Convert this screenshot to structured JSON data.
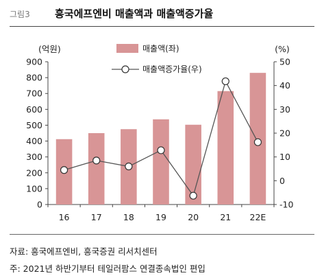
{
  "figure": {
    "label": "그림3",
    "title": "흥국에프엔비 매출액과 매출액증가율",
    "source": "자료: 흥국에프엔비, 흥국증권 리서치센터",
    "footnote": "주: 2021년 하반기부터 테일러팜스 연결종속법인 편입"
  },
  "chart_data": {
    "type": "bar",
    "categories": [
      "16",
      "17",
      "18",
      "19",
      "20",
      "21",
      "22E"
    ],
    "series": [
      {
        "name": "매출액(좌)",
        "type": "bar",
        "axis": "left",
        "color": "#d89596",
        "values": [
          412,
          450,
          475,
          537,
          503,
          715,
          830
        ]
      },
      {
        "name": "매출액증가율(우)",
        "type": "line",
        "axis": "right",
        "color": "#555555",
        "values": [
          4.5,
          8.5,
          6.0,
          12.8,
          -6.3,
          41.8,
          16.2
        ]
      }
    ],
    "left_axis": {
      "unit_label": "(억원)",
      "ylim": [
        0,
        900
      ],
      "ticks": [
        0,
        100,
        200,
        300,
        400,
        500,
        600,
        700,
        800,
        900
      ]
    },
    "right_axis": {
      "unit_label": "(%)",
      "ylim": [
        -10,
        50
      ],
      "ticks": [
        -10,
        0,
        10,
        20,
        30,
        40,
        50
      ]
    },
    "legend_position": "top",
    "grid": false
  }
}
